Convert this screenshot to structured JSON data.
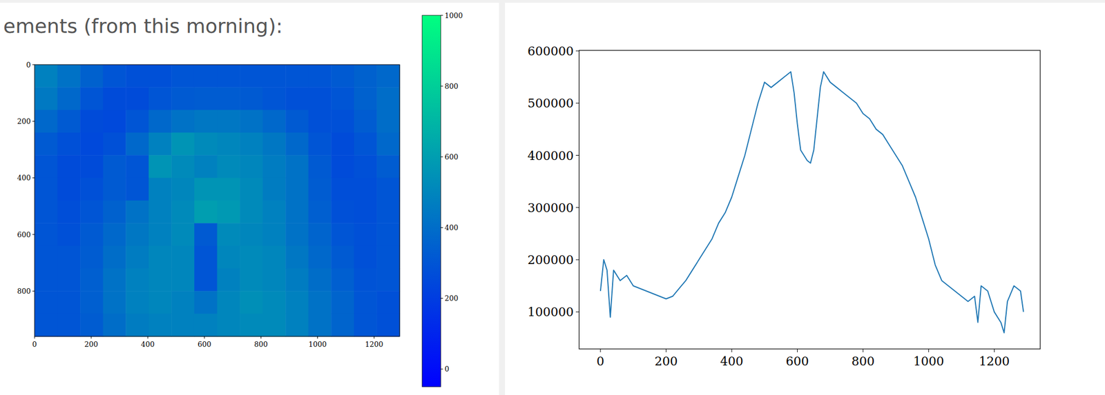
{
  "chart_data": [
    {
      "type": "heatmap",
      "title": "ements (from this morning):",
      "xlim": [
        0,
        1290
      ],
      "ylim": [
        960,
        0
      ],
      "xticks": [
        0,
        200,
        400,
        600,
        800,
        1000,
        1200
      ],
      "yticks": [
        0,
        200,
        400,
        600,
        800
      ],
      "cells": [
        [
          480,
          420,
          350,
          300,
          280,
          280,
          300,
          300,
          300,
          300,
          300,
          300,
          300,
          320,
          350,
          380
        ],
        [
          450,
          380,
          300,
          260,
          260,
          300,
          320,
          330,
          330,
          320,
          300,
          280,
          280,
          300,
          350,
          400
        ],
        [
          380,
          320,
          260,
          250,
          300,
          380,
          420,
          440,
          440,
          420,
          380,
          320,
          280,
          280,
          330,
          400
        ],
        [
          320,
          280,
          250,
          280,
          380,
          480,
          560,
          520,
          500,
          480,
          440,
          380,
          300,
          260,
          300,
          380
        ],
        [
          300,
          260,
          260,
          320,
          300,
          560,
          520,
          480,
          520,
          500,
          460,
          420,
          320,
          260,
          280,
          330
        ],
        [
          300,
          260,
          280,
          320,
          300,
          480,
          500,
          560,
          560,
          520,
          460,
          420,
          330,
          270,
          270,
          300
        ],
        [
          300,
          270,
          300,
          350,
          420,
          480,
          520,
          600,
          580,
          520,
          480,
          420,
          340,
          280,
          270,
          300
        ],
        [
          300,
          280,
          320,
          380,
          440,
          480,
          520,
          320,
          520,
          500,
          480,
          420,
          360,
          300,
          280,
          300
        ],
        [
          300,
          300,
          330,
          400,
          460,
          500,
          500,
          300,
          500,
          520,
          500,
          440,
          380,
          320,
          280,
          300
        ],
        [
          300,
          300,
          340,
          420,
          480,
          500,
          500,
          300,
          480,
          520,
          500,
          460,
          400,
          340,
          290,
          300
        ],
        [
          300,
          300,
          340,
          420,
          480,
          500,
          480,
          420,
          500,
          540,
          520,
          480,
          420,
          360,
          300,
          280
        ],
        [
          300,
          300,
          330,
          400,
          460,
          480,
          480,
          480,
          500,
          520,
          520,
          480,
          420,
          360,
          300,
          280
        ]
      ],
      "color_range": [
        -50,
        1000
      ],
      "color_ticks": [
        0,
        200,
        400,
        600,
        800,
        1000
      ]
    },
    {
      "type": "line",
      "color": "#1f77b4",
      "x": [
        0,
        10,
        20,
        30,
        40,
        60,
        80,
        100,
        120,
        140,
        160,
        180,
        200,
        220,
        240,
        260,
        280,
        300,
        320,
        340,
        360,
        380,
        400,
        420,
        440,
        460,
        480,
        500,
        520,
        540,
        560,
        580,
        590,
        600,
        610,
        620,
        630,
        640,
        650,
        660,
        670,
        680,
        700,
        720,
        740,
        760,
        780,
        800,
        820,
        840,
        860,
        880,
        900,
        920,
        940,
        960,
        980,
        1000,
        1020,
        1040,
        1060,
        1080,
        1100,
        1120,
        1140,
        1150,
        1160,
        1180,
        1200,
        1220,
        1230,
        1240,
        1260,
        1280,
        1289
      ],
      "values": [
        140000,
        200000,
        180000,
        90000,
        180000,
        160000,
        170000,
        150000,
        145000,
        140000,
        135000,
        130000,
        125000,
        130000,
        145000,
        160000,
        180000,
        200000,
        220000,
        240000,
        270000,
        290000,
        320000,
        360000,
        400000,
        450000,
        500000,
        540000,
        530000,
        540000,
        550000,
        560000,
        520000,
        460000,
        410000,
        400000,
        390000,
        385000,
        410000,
        470000,
        530000,
        560000,
        540000,
        530000,
        520000,
        510000,
        500000,
        480000,
        470000,
        450000,
        440000,
        420000,
        400000,
        380000,
        350000,
        320000,
        280000,
        240000,
        190000,
        160000,
        150000,
        140000,
        130000,
        120000,
        130000,
        80000,
        150000,
        140000,
        100000,
        80000,
        60000,
        120000,
        150000,
        140000,
        100000
      ],
      "xlim": [
        -65,
        1340
      ],
      "ylim": [
        29000,
        601000
      ],
      "xticks": [
        0,
        200,
        400,
        600,
        800,
        1000,
        1200
      ],
      "yticks": [
        100000,
        200000,
        300000,
        400000,
        500000,
        600000
      ]
    }
  ]
}
